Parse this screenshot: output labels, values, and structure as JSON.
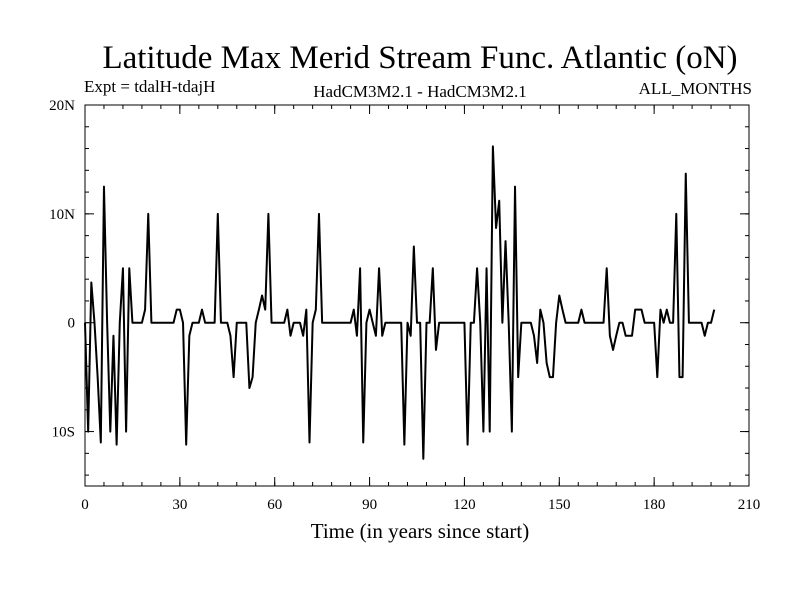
{
  "chart_data": {
    "type": "line",
    "title": "Latitude Max Merid Stream Func. Atlantic (oN)",
    "subtitle_left": "Expt = tdalH-tdajH",
    "subtitle_center": "HadCM3M2.1 - HadCM3M2.1",
    "subtitle_right": "ALL_MONTHS",
    "xlabel": "Time (in years since start)",
    "ylabel": "",
    "xlim": [
      0,
      210
    ],
    "ylim": [
      -15,
      20
    ],
    "x_ticks": [
      0,
      30,
      60,
      90,
      120,
      150,
      180,
      210
    ],
    "x_tick_labels": [
      "0",
      "30",
      "60",
      "90",
      "120",
      "150",
      "180",
      "210"
    ],
    "y_ticks": [
      -10,
      0,
      10,
      20
    ],
    "y_tick_labels": [
      "10S",
      "0",
      "10N",
      "20N"
    ],
    "grid": false,
    "series": [
      {
        "color": "#000000",
        "x": [
          0,
          1,
          2,
          3,
          4,
          5,
          6,
          7,
          8,
          9,
          10,
          11,
          12,
          13,
          14,
          15,
          16,
          17,
          18,
          19,
          20,
          21,
          22,
          23,
          24,
          25,
          26,
          27,
          28,
          29,
          30,
          31,
          32,
          33,
          34,
          35,
          36,
          37,
          38,
          39,
          40,
          41,
          42,
          43,
          44,
          45,
          46,
          47,
          48,
          49,
          50,
          51,
          52,
          53,
          54,
          55,
          56,
          57,
          58,
          59,
          60,
          61,
          62,
          63,
          64,
          65,
          66,
          67,
          68,
          69,
          70,
          71,
          72,
          73,
          74,
          75,
          76,
          77,
          78,
          79,
          80,
          81,
          82,
          83,
          84,
          85,
          86,
          87,
          88,
          89,
          90,
          91,
          92,
          93,
          94,
          95,
          96,
          97,
          98,
          99,
          100,
          101,
          102,
          103,
          104,
          105,
          106,
          107,
          108,
          109,
          110,
          111,
          112,
          113,
          114,
          115,
          116,
          117,
          118,
          119,
          120,
          121,
          122,
          123,
          124,
          125,
          126,
          127,
          128,
          129,
          130,
          131,
          132,
          133,
          134,
          135,
          136,
          137,
          138,
          139,
          140,
          141,
          142,
          143,
          144,
          145,
          146,
          147,
          148,
          149,
          150,
          151,
          152,
          153,
          154,
          155,
          156,
          157,
          158,
          159,
          160,
          161,
          162,
          163,
          164,
          165,
          166,
          167,
          168,
          169,
          170,
          171,
          172,
          173,
          174,
          175,
          176,
          177,
          178,
          179,
          180,
          181,
          182,
          183,
          184,
          185,
          186,
          187,
          188,
          189,
          190,
          191,
          192,
          193,
          194,
          195,
          196,
          197,
          198,
          199
        ],
        "values": [
          0,
          -10,
          3.7,
          0,
          -5,
          -11,
          12.5,
          0,
          -10,
          -1.2,
          -11.2,
          0,
          5,
          -10,
          5,
          0,
          0,
          0,
          0,
          1.2,
          10,
          0,
          0,
          0,
          0,
          0,
          0,
          0,
          0,
          1.2,
          1.2,
          0,
          -11.2,
          -1.2,
          0,
          0,
          0,
          1.2,
          0,
          0,
          0,
          0,
          10,
          0,
          0,
          0,
          -1.2,
          -5,
          0,
          0,
          0,
          0,
          -6,
          -5,
          0,
          1.2,
          2.5,
          1.2,
          10,
          0,
          0,
          0,
          0,
          0,
          1.2,
          -1.2,
          0,
          0,
          0,
          -1.2,
          1.2,
          -11,
          0,
          1.2,
          10,
          0,
          0,
          0,
          0,
          0,
          0,
          0,
          0,
          0,
          0,
          1.2,
          -1.2,
          5,
          -11,
          0,
          1.2,
          0,
          -1.2,
          5,
          -1.2,
          0,
          0,
          0,
          0,
          0,
          0,
          -11.2,
          0,
          -1.2,
          7,
          0,
          0,
          -12.5,
          0,
          0,
          5,
          -2.5,
          0,
          0,
          0,
          0,
          0,
          0,
          0,
          0,
          0,
          -11.2,
          0,
          0,
          5,
          0,
          -10,
          5,
          -10,
          16.2,
          8.7,
          11.2,
          0,
          7.5,
          0,
          -10,
          12.5,
          -5,
          0,
          0,
          0,
          0,
          -1.2,
          -3.7,
          1.2,
          0,
          -3.7,
          -5,
          -5,
          0,
          2.5,
          1.2,
          0,
          0,
          0,
          0,
          0,
          1.2,
          0,
          0,
          0,
          0,
          0,
          0,
          0,
          5,
          -1.2,
          -2.5,
          -1.2,
          0,
          0,
          -1.2,
          -1.2,
          -1.2,
          1.2,
          1.2,
          1.2,
          0,
          0,
          0,
          0,
          -5,
          1.2,
          0,
          1.2,
          0,
          0,
          10,
          -5,
          -5,
          13.7,
          0,
          0,
          0,
          0,
          0,
          -1.2,
          0,
          0,
          1.2
        ]
      }
    ]
  }
}
